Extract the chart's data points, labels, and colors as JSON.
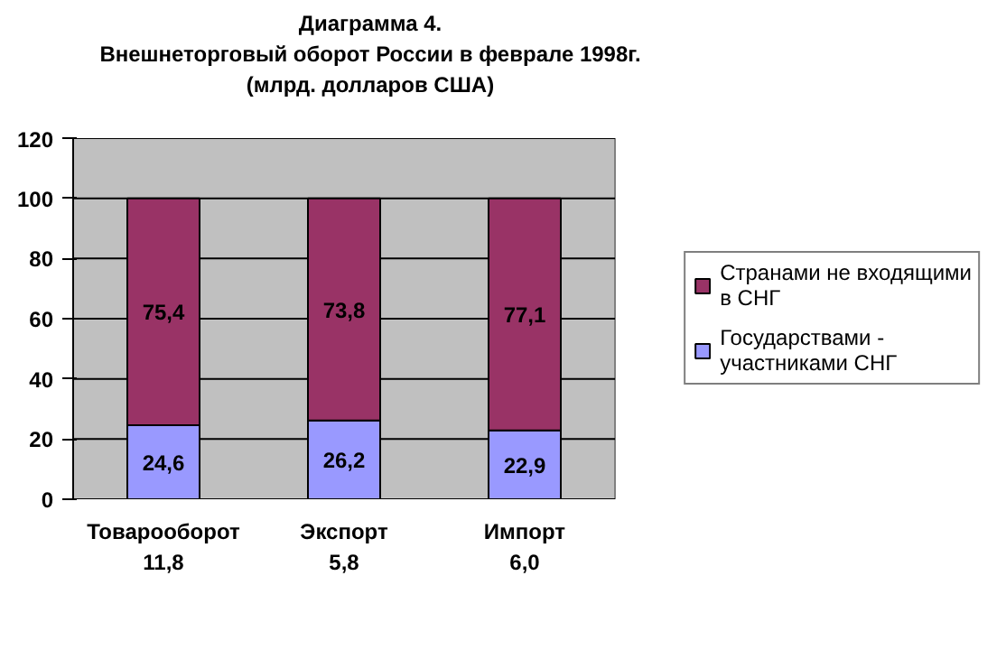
{
  "chart_data": {
    "type": "bar",
    "stacked": true,
    "title": "Диаграмма 4.",
    "subtitle": "Внешнеторговый оборот России в феврале 1998г. (млрд. долларов США)",
    "categories": [
      "Товарооборот\n11,8",
      "Экспорт\n5,8",
      "Импорт\n6,0"
    ],
    "series": [
      {
        "name": "Государствами - участниками СНГ",
        "color": "#9999ff",
        "values": [
          24.6,
          26.2,
          22.9
        ],
        "value_labels": [
          "24,6",
          "26,2",
          "22,9"
        ]
      },
      {
        "name": "Странами не входящими в СНГ",
        "color": "#993366",
        "values": [
          75.4,
          73.8,
          77.1
        ],
        "value_labels": [
          "75,4",
          "73,8",
          "77,1"
        ]
      }
    ],
    "ylim": [
      0,
      120
    ],
    "yticks": [
      0,
      20,
      40,
      60,
      80,
      100,
      120
    ],
    "grid": "y",
    "legend": "right"
  }
}
